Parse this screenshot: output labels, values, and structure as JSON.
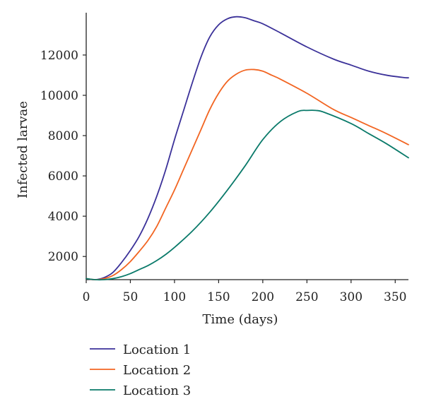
{
  "chart_data": {
    "type": "line",
    "title": "",
    "xlabel": "Time (days)",
    "ylabel": "Infected larvae",
    "xlim": [
      0,
      365
    ],
    "ylim": [
      850,
      14100
    ],
    "xticks": [
      0,
      50,
      100,
      150,
      200,
      250,
      300,
      350
    ],
    "yticks": [
      2000,
      4000,
      6000,
      8000,
      10000,
      12000
    ],
    "grid": false,
    "legend_position": "bottom",
    "series": [
      {
        "name": "Location 1",
        "color": "#3b3199",
        "x": [
          0,
          10,
          20,
          30,
          40,
          50,
          60,
          70,
          80,
          90,
          100,
          110,
          120,
          130,
          140,
          150,
          160,
          170,
          180,
          190,
          200,
          220,
          250,
          280,
          300,
          320,
          340,
          360,
          365
        ],
        "y": [
          900,
          850,
          950,
          1200,
          1700,
          2300,
          3000,
          3900,
          5000,
          6300,
          7800,
          9200,
          10600,
          11900,
          12900,
          13500,
          13800,
          13900,
          13850,
          13700,
          13550,
          13100,
          12400,
          11800,
          11500,
          11200,
          11000,
          10880,
          10870
        ]
      },
      {
        "name": "Location 2",
        "color": "#f26522",
        "x": [
          0,
          10,
          20,
          30,
          40,
          50,
          60,
          70,
          80,
          90,
          100,
          110,
          120,
          130,
          140,
          150,
          160,
          170,
          180,
          190,
          200,
          210,
          220,
          250,
          280,
          300,
          320,
          340,
          365
        ],
        "y": [
          900,
          850,
          900,
          1050,
          1350,
          1750,
          2250,
          2800,
          3500,
          4400,
          5300,
          6300,
          7300,
          8300,
          9300,
          10100,
          10700,
          11050,
          11250,
          11280,
          11200,
          11000,
          10800,
          10100,
          9300,
          8900,
          8500,
          8100,
          7550
        ]
      },
      {
        "name": "Location 3",
        "color": "#0a7a6a",
        "x": [
          0,
          10,
          20,
          30,
          40,
          50,
          60,
          70,
          80,
          90,
          100,
          120,
          140,
          160,
          180,
          200,
          220,
          240,
          250,
          260,
          270,
          300,
          320,
          340,
          365
        ],
        "y": [
          900,
          850,
          850,
          900,
          1000,
          1150,
          1350,
          1550,
          1800,
          2100,
          2450,
          3250,
          4200,
          5300,
          6500,
          7800,
          8700,
          9200,
          9250,
          9250,
          9150,
          8600,
          8100,
          7600,
          6900
        ]
      }
    ]
  }
}
